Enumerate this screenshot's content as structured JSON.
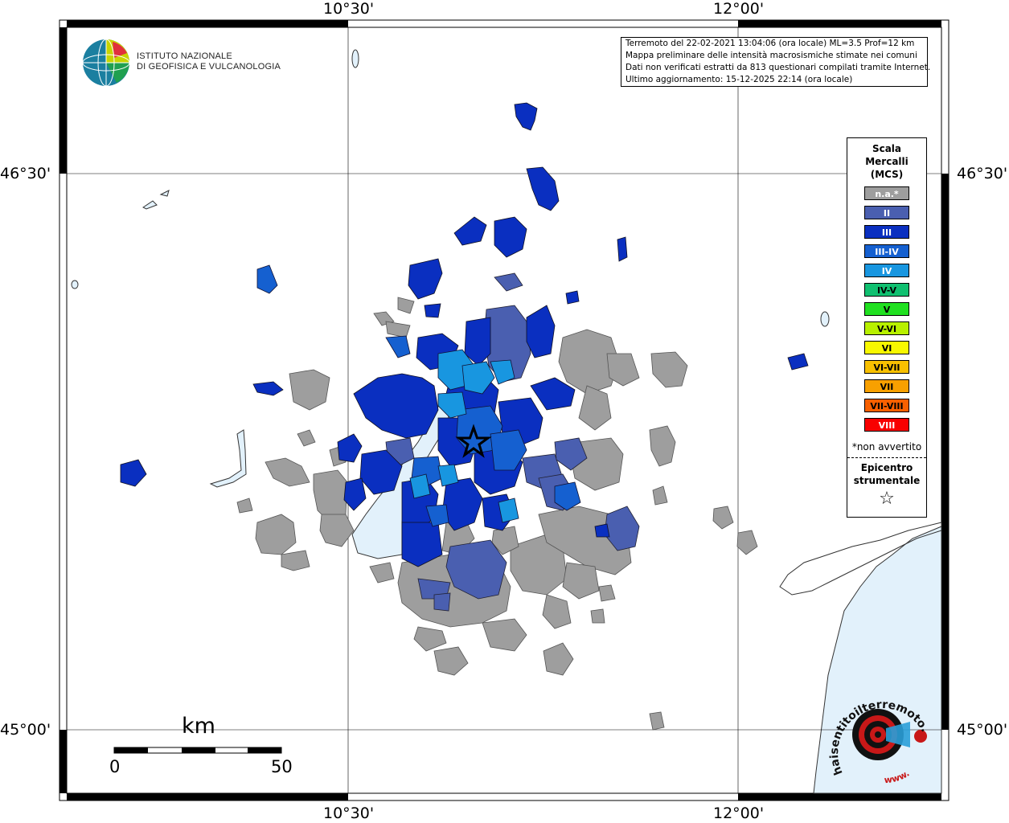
{
  "coords": {
    "top_left": "10°30'",
    "top_right": "12°00'",
    "bottom_left": "10°30'",
    "bottom_right": "12°00'",
    "left_upper": "46°30'",
    "left_lower": "45°00'",
    "right_upper": "46°30'",
    "right_lower": "45°00'"
  },
  "logo": {
    "line1": "ISTITUTO NAZIONALE",
    "line2": "DI GEOFISICA E VULCANOLOGIA"
  },
  "info": {
    "line1": "Terremoto del 22-02-2021 13:04:06 (ora locale) ML=3.5 Prof=12 km",
    "line2": "Mappa preliminare delle intensità macrosismiche stimate nei comuni",
    "line3": "Dati non verificati estratti da 813 questionari compilati tramite Internet.",
    "line4": "Ultimo aggiornamento: 15-12-2025 22:14 (ora locale)"
  },
  "legend": {
    "title": [
      "Scala",
      "Mercalli",
      "(MCS)"
    ],
    "items": [
      {
        "label": "n.a.*",
        "color": "#9e9e9e",
        "text": "#ffffff"
      },
      {
        "label": "II",
        "color": "#4a5fb0",
        "text": "#ffffff"
      },
      {
        "label": "III",
        "color": "#0a2fc0",
        "text": "#ffffff"
      },
      {
        "label": "III-IV",
        "color": "#1560d0",
        "text": "#ffffff"
      },
      {
        "label": "IV",
        "color": "#1896e0",
        "text": "#ffffff"
      },
      {
        "label": "IV-V",
        "color": "#10c070",
        "text": "#000000"
      },
      {
        "label": "V",
        "color": "#20e020",
        "text": "#000000"
      },
      {
        "label": "V-VI",
        "color": "#b8f000",
        "text": "#000000"
      },
      {
        "label": "VI",
        "color": "#f8f800",
        "text": "#000000"
      },
      {
        "label": "VI-VII",
        "color": "#f8c000",
        "text": "#000000"
      },
      {
        "label": "VII",
        "color": "#f8a000",
        "text": "#000000"
      },
      {
        "label": "VII-VIII",
        "color": "#f86000",
        "text": "#000000"
      },
      {
        "label": "VIII",
        "color": "#f80000",
        "text": "#ffffff"
      }
    ],
    "note": "*non avvertito",
    "epicenter": [
      "Epicentro",
      "strumentale"
    ],
    "star": "☆"
  },
  "scale": {
    "unit": "km",
    "min": "0",
    "max": "50"
  },
  "watermark": {
    "text": "haisentitoilterremoto.it",
    "url": "www."
  },
  "colors": {
    "na": "#9e9e9e",
    "ii": "#4a5fb0",
    "iii": "#0a2fc0",
    "iii_iv": "#1560d0",
    "iv": "#1896e0",
    "water": "#e2f1fb"
  }
}
